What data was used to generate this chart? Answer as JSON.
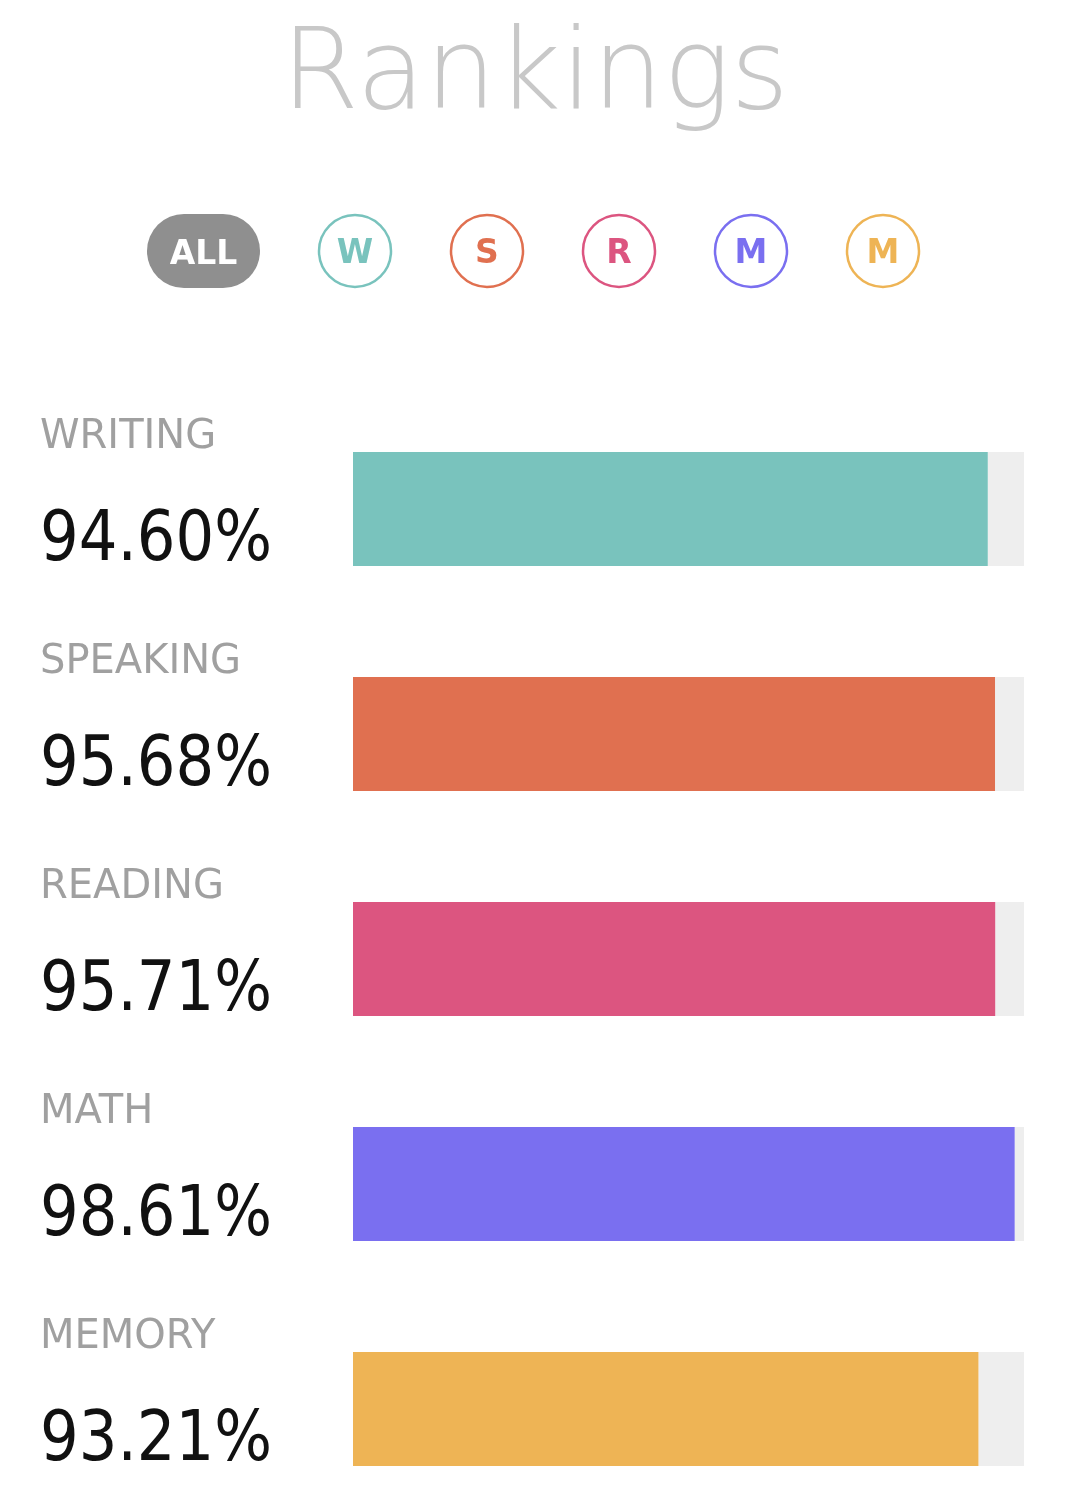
{
  "chart_data": {
    "type": "bar",
    "orientation": "horizontal",
    "title": "Rankings",
    "annotations": [
      "ALL",
      "W",
      "S",
      "R",
      "M",
      "M"
    ],
    "categories": [
      "WRITING",
      "SPEAKING",
      "READING",
      "MATH",
      "MEMORY"
    ],
    "values": [
      94.6,
      95.68,
      95.71,
      98.61,
      93.21
    ],
    "value_labels": [
      "94.60%",
      "95.68%",
      "95.71%",
      "98.61%",
      "93.21%"
    ],
    "colors": [
      "#79c3bd",
      "#e07050",
      "#dc5580",
      "#7a6ff0",
      "#eeb455"
    ],
    "xlim": [
      0,
      100
    ],
    "tick_labels": "y"
  }
}
